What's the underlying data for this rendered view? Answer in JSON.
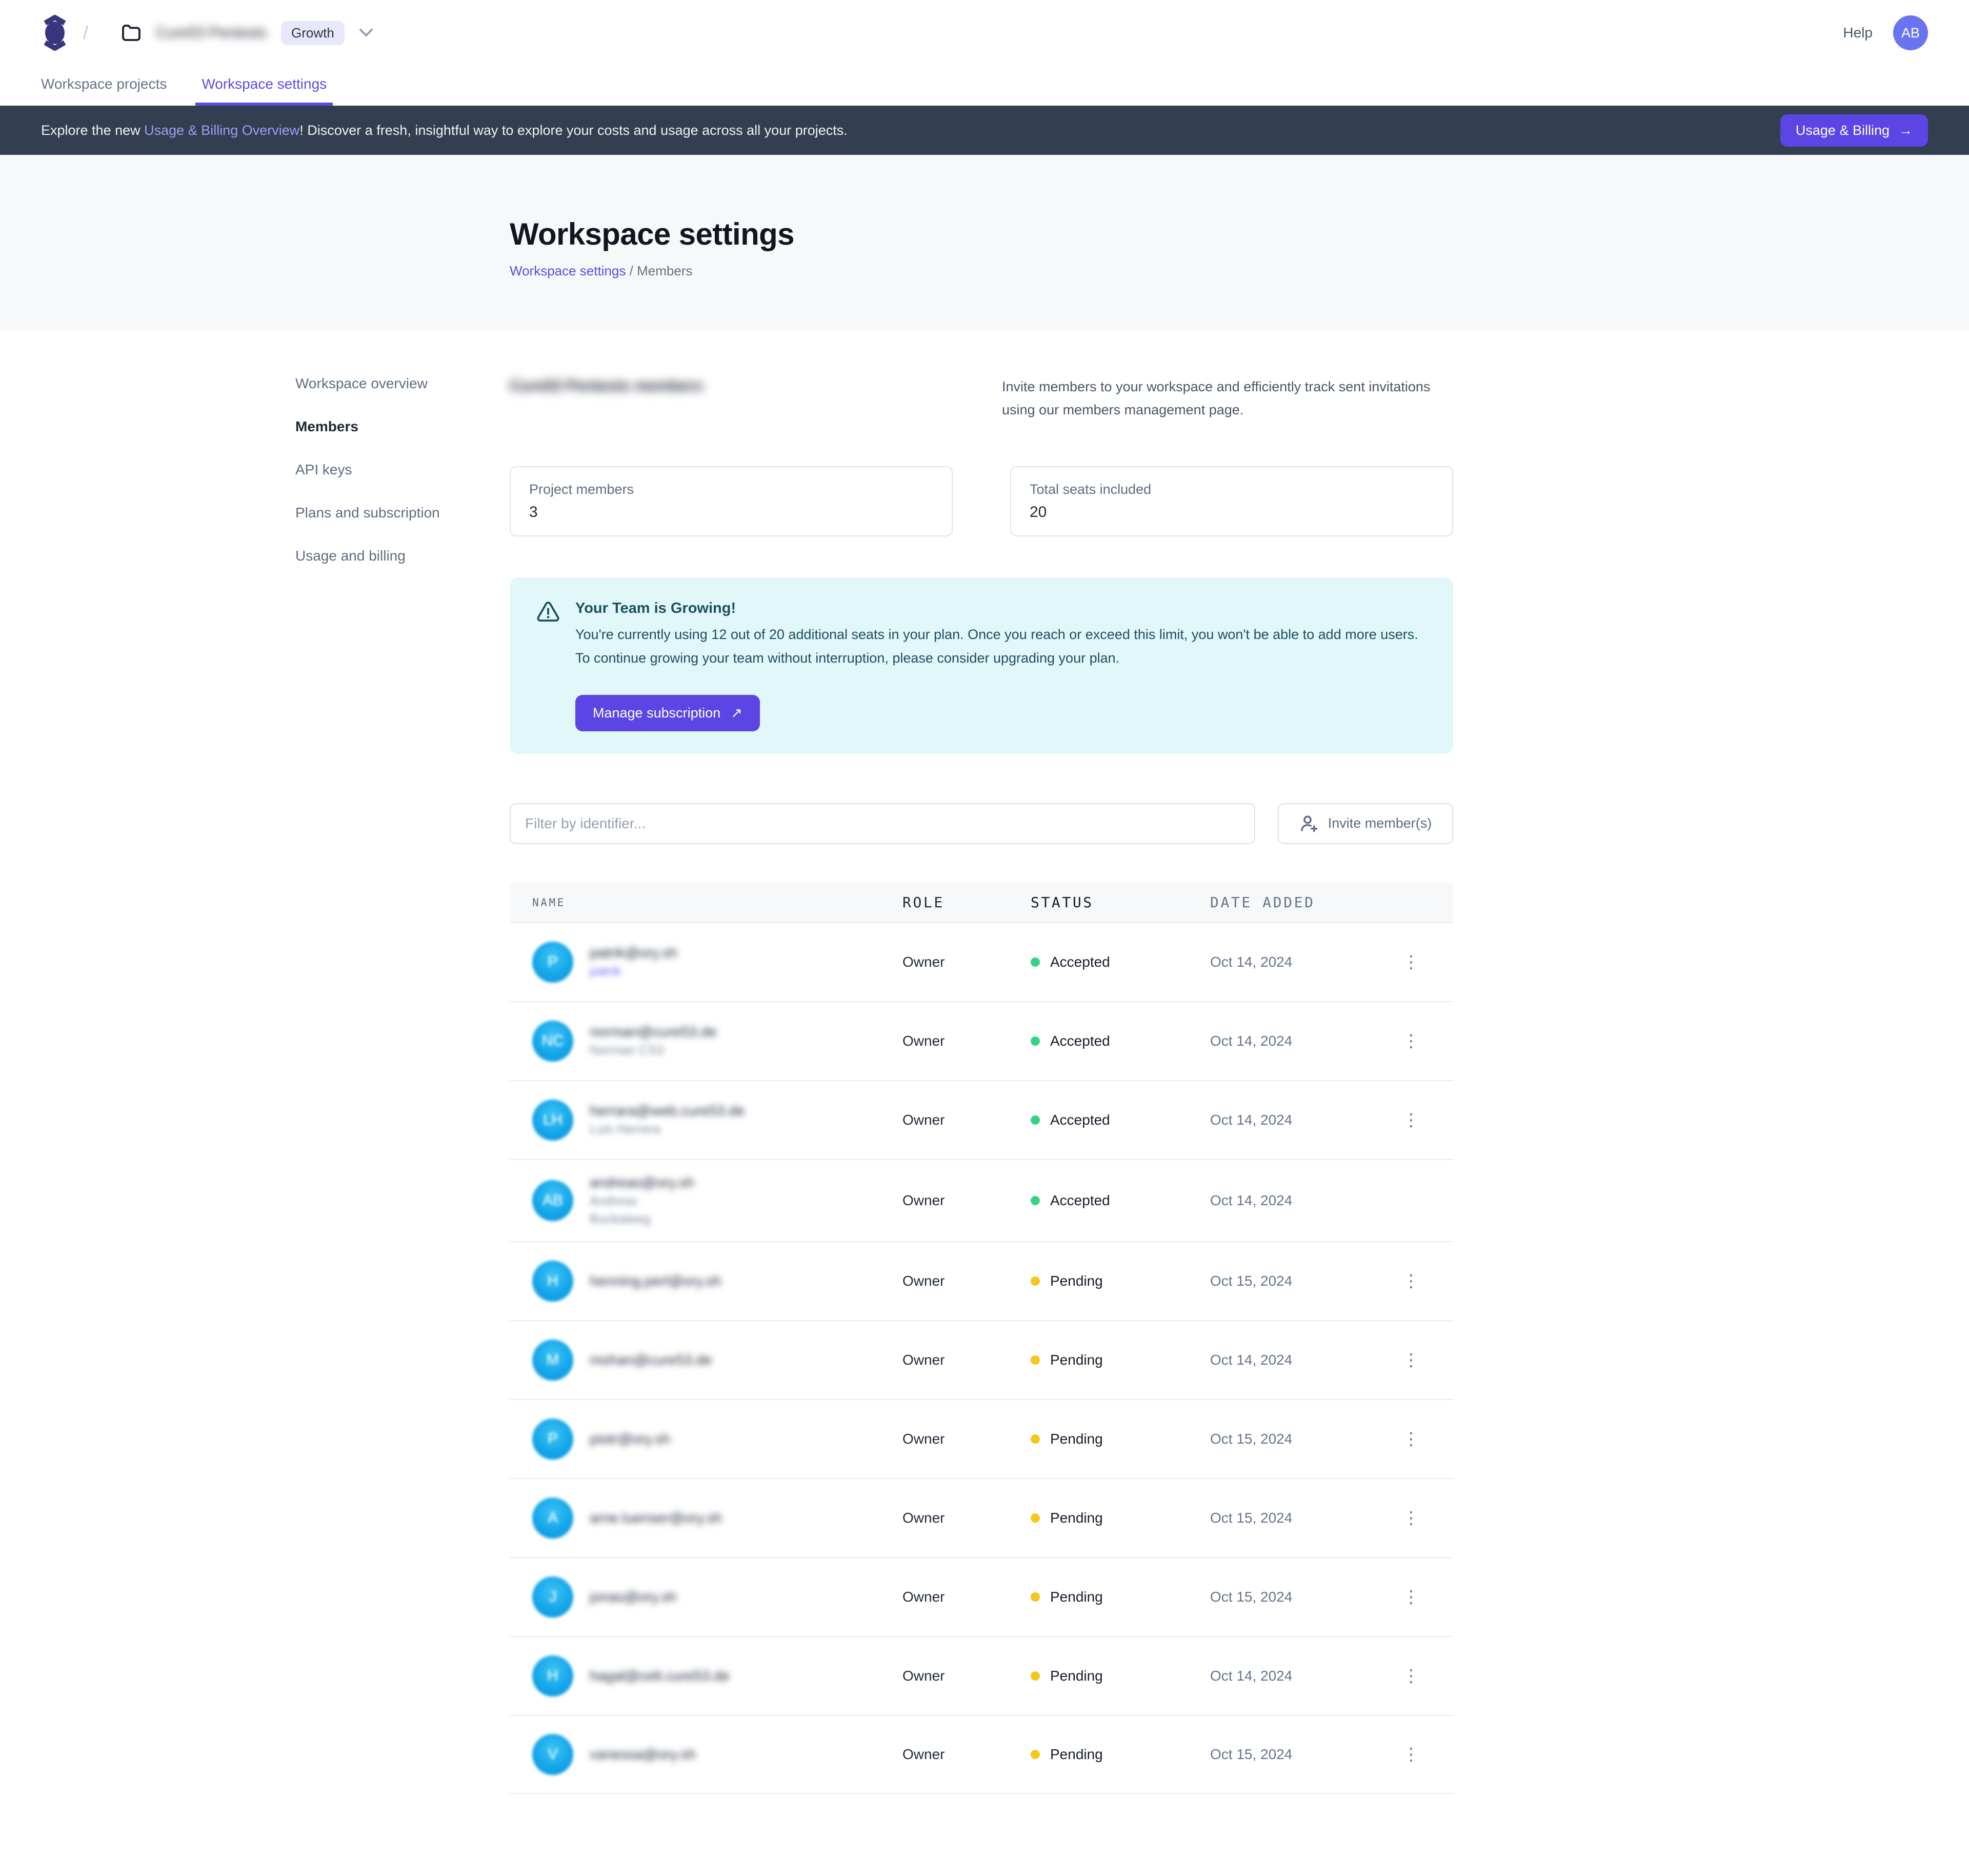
{
  "header": {
    "separator": "/",
    "workspace_name": "Cure53 Pentests",
    "plan_badge": "Growth",
    "help_label": "Help",
    "avatar_initials": "AB"
  },
  "tabs": [
    {
      "label": "Workspace projects",
      "active": false
    },
    {
      "label": "Workspace settings",
      "active": true
    }
  ],
  "banner": {
    "text_prefix": "Explore the new ",
    "link_text": "Usage & Billing Overview",
    "text_suffix": "! Discover a fresh, insightful way to explore your costs and usage across all your projects.",
    "button_label": "Usage & Billing",
    "button_arrow": "→"
  },
  "hero": {
    "title": "Workspace settings",
    "breadcrumb_link": "Workspace settings",
    "breadcrumb_separator": " / ",
    "breadcrumb_current": "Members"
  },
  "sidebar": {
    "items": [
      {
        "label": "Workspace overview",
        "active": false
      },
      {
        "label": "Members",
        "active": true
      },
      {
        "label": "API keys",
        "active": false
      },
      {
        "label": "Plans and subscription",
        "active": false
      },
      {
        "label": "Usage and billing",
        "active": false
      }
    ]
  },
  "members_section": {
    "heading": "Cure53 Pentests members",
    "description": "Invite members to your workspace and efficiently track sent invitations using our members management page.",
    "cards": [
      {
        "label": "Project members",
        "value": "3"
      },
      {
        "label": "Total seats included",
        "value": "20"
      }
    ],
    "alert": {
      "title": "Your Team is Growing!",
      "body": "You're currently using 12 out of 20 additional seats in your plan. Once you reach or exceed this limit, you won't be able to add more users. To continue growing your team without interruption, please consider upgrading your plan.",
      "button_label": "Manage subscription",
      "button_arrow": "↗"
    },
    "filter_placeholder": "Filter by identifier...",
    "invite_button_label": "Invite member(s)"
  },
  "table": {
    "columns": [
      "NAME",
      "ROLE",
      "STATUS",
      "DATE ADDED"
    ],
    "rows": [
      {
        "initials": "P",
        "email": "patrik@ory.sh",
        "secondary": [
          {
            "text": "patrik",
            "link": true
          }
        ],
        "role": "Owner",
        "status": "Accepted",
        "date": "Oct 14, 2024",
        "menu": true
      },
      {
        "initials": "NC",
        "email": "norman@cure53.de",
        "secondary": [
          {
            "text": "Norman CS3",
            "link": false
          }
        ],
        "role": "Owner",
        "status": "Accepted",
        "date": "Oct 14, 2024",
        "menu": true
      },
      {
        "initials": "LH",
        "email": "herrara@web.cure53.de",
        "secondary": [
          {
            "text": "Luis Herrera",
            "link": false
          }
        ],
        "role": "Owner",
        "status": "Accepted",
        "date": "Oct 14, 2024",
        "menu": true
      },
      {
        "initials": "AB",
        "email": "andreas@ory.sh",
        "secondary": [
          {
            "text": "Andreas",
            "link": false
          },
          {
            "text": "Buckateeg",
            "link": false
          }
        ],
        "role": "Owner",
        "status": "Accepted",
        "date": "Oct 14, 2024",
        "menu": false
      },
      {
        "initials": "H",
        "email": "henning.perl@ory.sh",
        "secondary": [],
        "role": "Owner",
        "status": "Pending",
        "date": "Oct 15, 2024",
        "menu": true
      },
      {
        "initials": "M",
        "email": "mohan@cure53.de",
        "secondary": [],
        "role": "Owner",
        "status": "Pending",
        "date": "Oct 14, 2024",
        "menu": true
      },
      {
        "initials": "P",
        "email": "piotr@ory.sh",
        "secondary": [],
        "role": "Owner",
        "status": "Pending",
        "date": "Oct 15, 2024",
        "menu": true
      },
      {
        "initials": "A",
        "email": "arne.luenser@ory.sh",
        "secondary": [],
        "role": "Owner",
        "status": "Pending",
        "date": "Oct 15, 2024",
        "menu": true
      },
      {
        "initials": "J",
        "email": "jonas@ory.sh",
        "secondary": [],
        "role": "Owner",
        "status": "Pending",
        "date": "Oct 15, 2024",
        "menu": true
      },
      {
        "initials": "H",
        "email": "hagal@celt.cure53.de",
        "secondary": [],
        "role": "Owner",
        "status": "Pending",
        "date": "Oct 14, 2024",
        "menu": true
      },
      {
        "initials": "V",
        "email": "vanessa@ory.sh",
        "secondary": [],
        "role": "Owner",
        "status": "Pending",
        "date": "Oct 15, 2024",
        "menu": true
      }
    ],
    "kebab_glyph": "⋮"
  },
  "colors": {
    "accent": "#5b45e4",
    "banner_bg": "#333f50",
    "alert_bg": "#e1f7f9",
    "alert_text": "#1d4e5f",
    "avatar_blue": "#14a6e9",
    "status": {
      "Accepted": "#36d385",
      "Pending": "#f6c61c"
    }
  }
}
